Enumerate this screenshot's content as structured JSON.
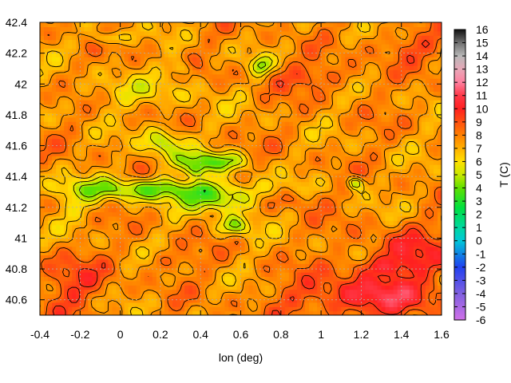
{
  "chart_data": {
    "type": "heatmap",
    "title": "",
    "xlabel": "lon (deg)",
    "ylabel": "",
    "colorbar_label": "T (C)",
    "xlim": [
      -0.4,
      1.6
    ],
    "ylim": [
      40.5,
      42.4
    ],
    "x_ticks": [
      "-0.4",
      "-0.2",
      "0",
      "0.2",
      "0.4",
      "0.6",
      "0.8",
      "1",
      "1.2",
      "1.4",
      "1.6"
    ],
    "x_tick_values": [
      -0.4,
      -0.2,
      0,
      0.2,
      0.4,
      0.6,
      0.8,
      1.0,
      1.2,
      1.4,
      1.6
    ],
    "y_ticks": [
      "40.6",
      "40.8",
      "41",
      "41.2",
      "41.4",
      "41.6",
      "41.8",
      "42",
      "42.2",
      "42.4"
    ],
    "y_tick_values": [
      40.6,
      40.8,
      41.0,
      41.2,
      41.4,
      41.6,
      41.8,
      42.0,
      42.2,
      42.4
    ],
    "colorbar_range": [
      -6,
      16
    ],
    "colorbar_ticks": [
      "16",
      "15",
      "14",
      "13",
      "12",
      "11",
      "10",
      "9",
      "8",
      "7",
      "6",
      "5",
      "4",
      "3",
      "2",
      "1",
      "0",
      "-1",
      "-2",
      "-3",
      "-4",
      "-5",
      "-6"
    ],
    "colorbar_tick_values": [
      16,
      15,
      14,
      13,
      12,
      11,
      10,
      9,
      8,
      7,
      6,
      5,
      4,
      3,
      2,
      1,
      0,
      -1,
      -2,
      -3,
      -4,
      -5,
      -6
    ],
    "palette_stops": [
      {
        "value": -6,
        "color": "#d070e8"
      },
      {
        "value": -4,
        "color": "#8060e0"
      },
      {
        "value": -2,
        "color": "#2040f0"
      },
      {
        "value": 0,
        "color": "#00c8d8"
      },
      {
        "value": 1,
        "color": "#00d8a0"
      },
      {
        "value": 2.5,
        "color": "#00e040"
      },
      {
        "value": 4,
        "color": "#60e000"
      },
      {
        "value": 5,
        "color": "#c8e800"
      },
      {
        "value": 6,
        "color": "#ffe000"
      },
      {
        "value": 7,
        "color": "#ffb000"
      },
      {
        "value": 8,
        "color": "#ff8000"
      },
      {
        "value": 9,
        "color": "#ff5010"
      },
      {
        "value": 10,
        "color": "#ff2020"
      },
      {
        "value": 11,
        "color": "#ff3848"
      },
      {
        "value": 12,
        "color": "#ff80a0"
      },
      {
        "value": 13,
        "color": "#e8a8b8"
      },
      {
        "value": 14,
        "color": "#b8b8b8"
      },
      {
        "value": 15,
        "color": "#707070"
      },
      {
        "value": 16,
        "color": "#101010"
      }
    ],
    "grid": true,
    "contours": true
  }
}
